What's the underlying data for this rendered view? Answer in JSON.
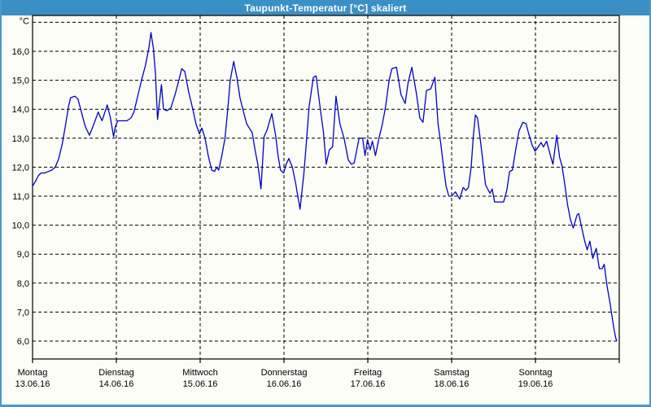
{
  "window": {
    "title": "Taupunkt-Temperatur [°C] skaliert",
    "titlebar_color": "#3a90c4",
    "border_color": "#4e98c7",
    "background_color": "#fcfdf6"
  },
  "chart_data": {
    "type": "line",
    "title": "Taupunkt-Temperatur [°C] skaliert",
    "ylabel": "°C",
    "y_unit_label": "°C",
    "ylim": [
      6.0,
      17.2
    ],
    "grid": "dashed-black",
    "line_color": "#0000cc",
    "y_ticks": [
      {
        "value": 6,
        "label": "6,0"
      },
      {
        "value": 7,
        "label": "7,0"
      },
      {
        "value": 8,
        "label": "8,0"
      },
      {
        "value": 9,
        "label": "9,0"
      },
      {
        "value": 10,
        "label": "10,0"
      },
      {
        "value": 11,
        "label": "11,0"
      },
      {
        "value": 12,
        "label": "12,0"
      },
      {
        "value": 13,
        "label": "13,0"
      },
      {
        "value": 14,
        "label": "14,0"
      },
      {
        "value": 15,
        "label": "15,0"
      },
      {
        "value": 16,
        "label": "16,0"
      }
    ],
    "y_grid_values": [
      6,
      7,
      8,
      9,
      10,
      11,
      12,
      13,
      14,
      15,
      16,
      17
    ],
    "x_days": [
      {
        "weekday": "Montag",
        "date": "13.06.16"
      },
      {
        "weekday": "Dienstag",
        "date": "14.06.16"
      },
      {
        "weekday": "Mittwoch",
        "date": "15.06.16"
      },
      {
        "weekday": "Donnerstag",
        "date": "16.06.16"
      },
      {
        "weekday": "Freitag",
        "date": "17.06.16"
      },
      {
        "weekday": "Samstag",
        "date": "18.06.16"
      },
      {
        "weekday": "Sonntag",
        "date": "19.06.16"
      }
    ],
    "x_hours_total": 168,
    "series": [
      {
        "name": "Taupunkt [°C]",
        "points": [
          [
            0.0,
            11.35
          ],
          [
            0.8,
            11.5
          ],
          [
            1.6,
            11.7
          ],
          [
            2.4,
            11.8
          ],
          [
            3.5,
            11.8
          ],
          [
            4.5,
            11.85
          ],
          [
            5.5,
            11.9
          ],
          [
            6.5,
            12.0
          ],
          [
            7.5,
            12.3
          ],
          [
            8.5,
            12.8
          ],
          [
            9.5,
            13.5
          ],
          [
            10.3,
            14.1
          ],
          [
            10.9,
            14.4
          ],
          [
            12.1,
            14.45
          ],
          [
            13.0,
            14.35
          ],
          [
            14.0,
            13.9
          ],
          [
            15.1,
            13.4
          ],
          [
            16.3,
            13.1
          ],
          [
            17.6,
            13.5
          ],
          [
            18.8,
            13.9
          ],
          [
            19.9,
            13.6
          ],
          [
            21.4,
            14.15
          ],
          [
            22.3,
            13.7
          ],
          [
            23.2,
            13.05
          ],
          [
            23.7,
            13.4
          ],
          [
            24.4,
            13.6
          ],
          [
            25.5,
            13.6
          ],
          [
            27.0,
            13.6
          ],
          [
            28.2,
            13.7
          ],
          [
            29.0,
            13.9
          ],
          [
            30.0,
            14.4
          ],
          [
            31.2,
            15.0
          ],
          [
            32.3,
            15.5
          ],
          [
            33.3,
            16.1
          ],
          [
            33.9,
            16.65
          ],
          [
            34.6,
            16.1
          ],
          [
            35.2,
            15.2
          ],
          [
            35.8,
            13.65
          ],
          [
            36.9,
            14.85
          ],
          [
            37.5,
            14.0
          ],
          [
            38.5,
            13.95
          ],
          [
            39.6,
            14.05
          ],
          [
            40.8,
            14.5
          ],
          [
            41.9,
            15.0
          ],
          [
            42.7,
            15.4
          ],
          [
            43.6,
            15.3
          ],
          [
            44.7,
            14.6
          ],
          [
            45.7,
            14.1
          ],
          [
            46.8,
            13.5
          ],
          [
            47.8,
            13.15
          ],
          [
            48.5,
            13.35
          ],
          [
            49.4,
            13.0
          ],
          [
            50.3,
            12.4
          ],
          [
            51.3,
            11.9
          ],
          [
            52.1,
            11.85
          ],
          [
            52.7,
            12.0
          ],
          [
            53.3,
            11.9
          ],
          [
            54.2,
            12.4
          ],
          [
            55.1,
            13.0
          ],
          [
            55.9,
            14.0
          ],
          [
            56.6,
            15.0
          ],
          [
            57.6,
            15.65
          ],
          [
            58.5,
            15.1
          ],
          [
            59.4,
            14.4
          ],
          [
            60.2,
            14.0
          ],
          [
            61.3,
            13.5
          ],
          [
            62.3,
            13.3
          ],
          [
            62.9,
            13.2
          ],
          [
            63.7,
            12.6
          ],
          [
            64.5,
            12.1
          ],
          [
            65.4,
            11.25
          ],
          [
            66.3,
            13.05
          ],
          [
            67.2,
            13.3
          ],
          [
            68.5,
            13.85
          ],
          [
            69.6,
            13.1
          ],
          [
            70.3,
            12.4
          ],
          [
            71.0,
            11.9
          ],
          [
            71.9,
            11.8
          ],
          [
            72.6,
            12.1
          ],
          [
            73.4,
            12.3
          ],
          [
            74.4,
            12.0
          ],
          [
            75.4,
            11.4
          ],
          [
            76.6,
            10.55
          ],
          [
            77.7,
            11.8
          ],
          [
            78.5,
            13.0
          ],
          [
            79.2,
            14.1
          ],
          [
            80.4,
            15.1
          ],
          [
            81.2,
            15.15
          ],
          [
            82.3,
            14.1
          ],
          [
            83.3,
            13.2
          ],
          [
            84.1,
            12.1
          ],
          [
            85.0,
            12.6
          ],
          [
            85.9,
            12.7
          ],
          [
            86.9,
            14.45
          ],
          [
            88.0,
            13.5
          ],
          [
            89.2,
            13.0
          ],
          [
            90.4,
            12.25
          ],
          [
            91.3,
            12.1
          ],
          [
            92.1,
            12.15
          ],
          [
            93.5,
            13.0
          ],
          [
            94.5,
            13.0
          ],
          [
            95.2,
            12.4
          ],
          [
            95.9,
            12.95
          ],
          [
            96.7,
            12.6
          ],
          [
            97.3,
            12.9
          ],
          [
            98.2,
            12.4
          ],
          [
            99.2,
            13.0
          ],
          [
            100.2,
            13.5
          ],
          [
            101.1,
            14.1
          ],
          [
            102.1,
            15.0
          ],
          [
            102.9,
            15.4
          ],
          [
            104.2,
            15.45
          ],
          [
            105.5,
            14.5
          ],
          [
            106.7,
            14.2
          ],
          [
            107.5,
            14.9
          ],
          [
            108.6,
            15.45
          ],
          [
            109.9,
            14.55
          ],
          [
            110.9,
            13.7
          ],
          [
            111.8,
            13.55
          ],
          [
            112.8,
            14.65
          ],
          [
            114.0,
            14.7
          ],
          [
            115.2,
            15.1
          ],
          [
            116.1,
            13.5
          ],
          [
            116.9,
            12.8
          ],
          [
            117.7,
            12.0
          ],
          [
            118.4,
            11.35
          ],
          [
            119.2,
            11.0
          ],
          [
            120.0,
            11.0
          ],
          [
            121.1,
            11.15
          ],
          [
            122.3,
            10.9
          ],
          [
            123.3,
            11.3
          ],
          [
            124.1,
            11.2
          ],
          [
            124.8,
            11.3
          ],
          [
            125.6,
            12.0
          ],
          [
            126.2,
            13.05
          ],
          [
            126.8,
            13.8
          ],
          [
            127.4,
            13.7
          ],
          [
            128.1,
            13.05
          ],
          [
            128.9,
            12.25
          ],
          [
            129.7,
            11.4
          ],
          [
            130.3,
            11.25
          ],
          [
            131.0,
            11.1
          ],
          [
            131.6,
            11.25
          ],
          [
            132.3,
            10.8
          ],
          [
            134.9,
            10.8
          ],
          [
            135.8,
            11.2
          ],
          [
            136.6,
            11.85
          ],
          [
            137.4,
            11.9
          ],
          [
            138.2,
            12.5
          ],
          [
            139.3,
            13.25
          ],
          [
            140.4,
            13.55
          ],
          [
            141.3,
            13.5
          ],
          [
            142.1,
            13.15
          ],
          [
            143.1,
            12.75
          ],
          [
            143.9,
            12.55
          ],
          [
            144.8,
            12.7
          ],
          [
            145.6,
            12.85
          ],
          [
            146.3,
            12.7
          ],
          [
            147.2,
            12.9
          ],
          [
            148.4,
            12.35
          ],
          [
            149.0,
            12.1
          ],
          [
            150.1,
            13.1
          ],
          [
            150.9,
            12.35
          ],
          [
            151.6,
            12.05
          ],
          [
            152.4,
            11.4
          ],
          [
            153.2,
            10.7
          ],
          [
            154.0,
            10.2
          ],
          [
            154.8,
            9.9
          ],
          [
            155.9,
            10.35
          ],
          [
            156.4,
            10.4
          ],
          [
            157.2,
            9.95
          ],
          [
            158.0,
            9.5
          ],
          [
            158.8,
            9.15
          ],
          [
            159.6,
            9.45
          ],
          [
            160.4,
            8.85
          ],
          [
            161.4,
            9.2
          ],
          [
            162.3,
            8.5
          ],
          [
            163.1,
            8.5
          ],
          [
            163.7,
            8.65
          ],
          [
            164.5,
            7.9
          ],
          [
            165.3,
            7.35
          ],
          [
            166.0,
            6.8
          ],
          [
            166.5,
            6.4
          ],
          [
            167.0,
            6.1
          ],
          [
            167.3,
            6.0
          ]
        ]
      }
    ]
  }
}
